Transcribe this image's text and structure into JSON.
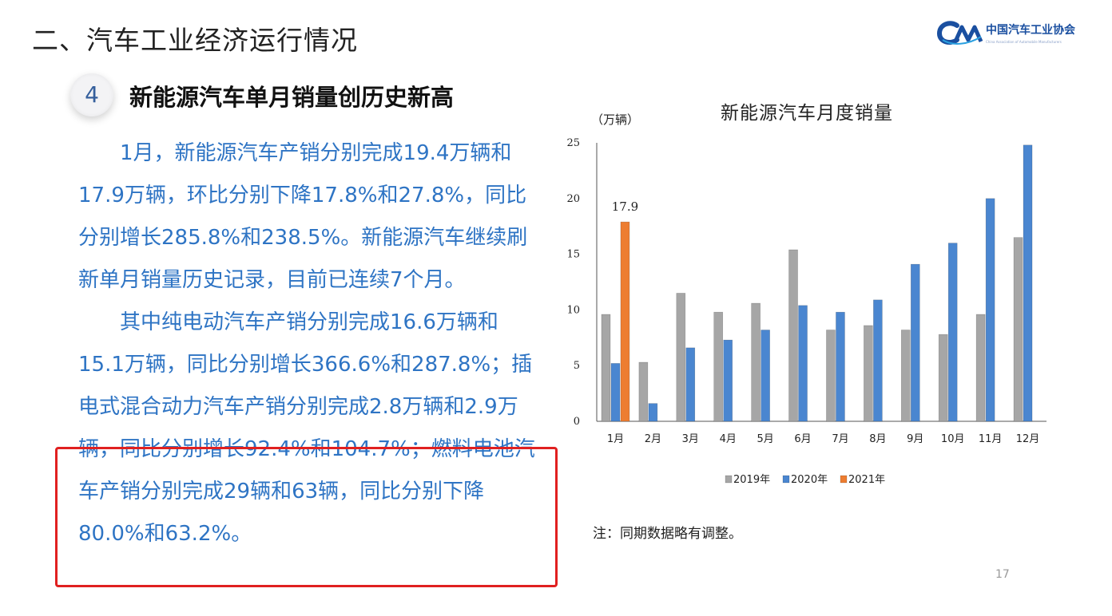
{
  "header": {
    "section_title": "二、汽车工业经济运行情况",
    "logo_text": "中国汽车工业协会",
    "logo_subtext": "China Association of Automobile Manufacturers"
  },
  "subsection": {
    "number": "4",
    "title": "新能源汽车单月销量创历史新高"
  },
  "body": {
    "paragraph1": "1月，新能源汽车产销分别完成19.4万辆和17.9万辆，环比分别下降17.8%和27.8%，同比分别增长285.8%和238.5%。新能源汽车继续刷新单月销量历史记录，目前已连续7个月。",
    "paragraph2": "其中纯电动汽车产销分别完成16.6万辆和15.1万辆，同比分别增长366.6%和287.8%；插电式混合动力汽车产销分别完成2.8万辆和2.9万辆，同比分别增长92.4%和104.7%；燃料电池汽车产销分别完成29辆和63辆，同比分别下降80.0%和63.2%。"
  },
  "colors": {
    "accent_text": "#2e74c4",
    "highlight_border": "#e02020",
    "series_2019": "#a6a6a6",
    "series_2020": "#4a86d0",
    "series_2021": "#ed7d31"
  },
  "chart_data": {
    "type": "bar",
    "title": "新能源汽车月度销量",
    "ylabel": "（万辆）",
    "xlabel": "",
    "ylim": [
      0,
      25
    ],
    "yticks": [
      0,
      5,
      10,
      15,
      20,
      25
    ],
    "categories": [
      "1月",
      "2月",
      "3月",
      "4月",
      "5月",
      "6月",
      "7月",
      "8月",
      "9月",
      "10月",
      "11月",
      "12月"
    ],
    "series": [
      {
        "name": "2019年",
        "values": [
          9.6,
          5.3,
          11.5,
          9.8,
          10.6,
          15.4,
          8.2,
          8.6,
          8.2,
          7.8,
          9.6,
          16.5
        ]
      },
      {
        "name": "2020年",
        "values": [
          5.2,
          1.6,
          6.6,
          7.3,
          8.2,
          10.4,
          9.8,
          10.9,
          14.1,
          16.0,
          20.0,
          24.8
        ]
      },
      {
        "name": "2021年",
        "values": [
          17.9,
          null,
          null,
          null,
          null,
          null,
          null,
          null,
          null,
          null,
          null,
          null
        ]
      }
    ],
    "data_labels": [
      {
        "series": "2021年",
        "category": "1月",
        "text": "17.9"
      }
    ],
    "grid": false,
    "legend_position": "bottom"
  },
  "note": "注：同期数据略有调整。",
  "page_number": "17"
}
